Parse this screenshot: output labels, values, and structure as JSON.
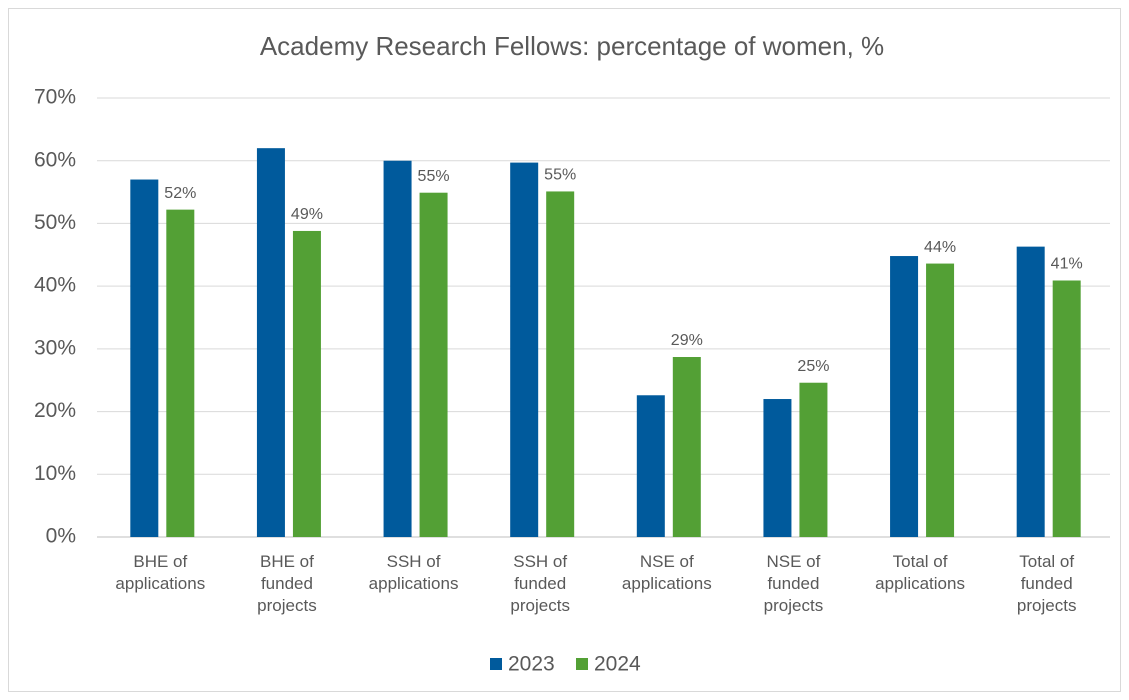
{
  "chart_data": {
    "type": "bar",
    "title": "Academy Research Fellows: percentage of women, %",
    "categories": [
      "BHE of applications",
      "BHE of funded projects",
      "SSH of applications",
      "SSH of funded projects",
      "NSE of applications",
      "NSE of funded projects",
      "Total of applications",
      "Total of funded projects"
    ],
    "series": [
      {
        "name": "2023",
        "color": "#005a9c",
        "values": [
          57,
          62,
          60,
          59.7,
          22.6,
          22.0,
          44.8,
          46.3
        ]
      },
      {
        "name": "2024",
        "color": "#53a035",
        "values": [
          52.2,
          48.8,
          54.9,
          55.1,
          28.7,
          24.6,
          43.6,
          40.9
        ],
        "value_labels": [
          "52%",
          "49%",
          "55%",
          "55%",
          "29%",
          "25%",
          "44%",
          "41%"
        ]
      }
    ],
    "ylim": [
      0,
      70
    ],
    "yticks": [
      {
        "value": 0,
        "label": "0%"
      },
      {
        "value": 10,
        "label": "10%"
      },
      {
        "value": 20,
        "label": "20%"
      },
      {
        "value": 30,
        "label": "30%"
      },
      {
        "value": 40,
        "label": "40%"
      },
      {
        "value": 50,
        "label": "50%"
      },
      {
        "value": 60,
        "label": "60%"
      },
      {
        "value": 70,
        "label": "70%"
      }
    ],
    "grid": true,
    "legend": "bottom"
  }
}
